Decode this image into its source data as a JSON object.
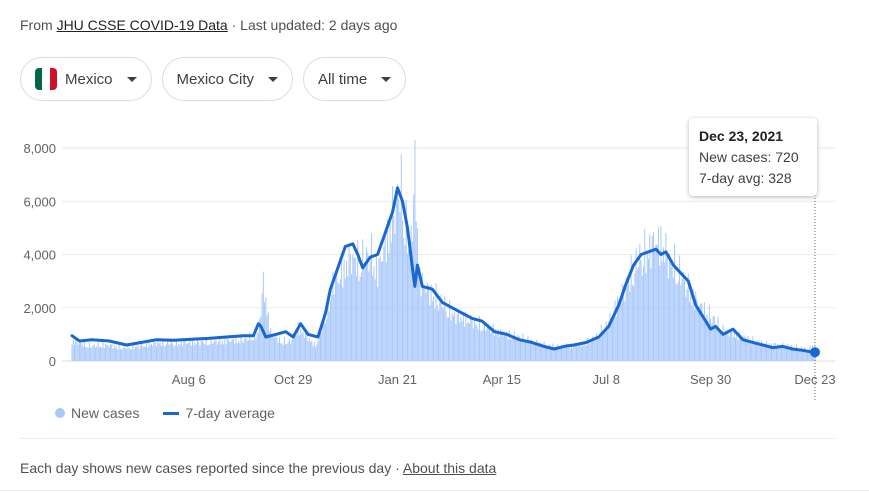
{
  "source": {
    "prefix": "From ",
    "link": "JHU CSSE COVID-19 Data",
    "updated": " · Last updated: 2 days ago"
  },
  "filters": {
    "country": "Mexico",
    "region": "Mexico City",
    "range": "All time",
    "flag_colors": [
      "#006847",
      "#ffffff",
      "#ce1126"
    ]
  },
  "tooltip": {
    "date": "Dec 23, 2021",
    "new_cases": "New cases: 720",
    "avg": "7-day avg: 328"
  },
  "legend": {
    "bars": "New cases",
    "line": "7-day average"
  },
  "footer": {
    "note": "Each day shows new cases reported since the previous day",
    "sep": " · ",
    "link": "About this data"
  },
  "colors": {
    "bars": "#a8c7fa",
    "line": "#1967d2",
    "grid": "#e8eaed"
  },
  "chart_data": {
    "type": "bar",
    "title": "",
    "xlabel": "",
    "ylabel": "",
    "ylim": [
      0,
      8000
    ],
    "yticks": [
      "0",
      "2,000",
      "4,000",
      "6,000",
      "8,000"
    ],
    "x_ticks": [
      "Aug 6",
      "Oct 29",
      "Jan 21",
      "Apr 15",
      "Jul 8",
      "Sep 30",
      "Dec 23"
    ],
    "x_tick_positions": [
      94,
      178,
      262,
      346,
      430,
      514,
      598
    ],
    "x_start": "2020-05-04",
    "x_end": "2021-12-23",
    "series": [
      {
        "name": "New cases",
        "type": "bar",
        "points": [
          [
            0,
            950
          ],
          [
            14,
            700
          ],
          [
            28,
            750
          ],
          [
            42,
            600
          ],
          [
            56,
            720
          ],
          [
            70,
            850
          ],
          [
            84,
            820
          ],
          [
            98,
            880
          ],
          [
            112,
            900
          ],
          [
            126,
            950
          ],
          [
            140,
            1000
          ],
          [
            150,
            1300
          ],
          [
            154,
            3600
          ],
          [
            160,
            1300
          ],
          [
            168,
            900
          ],
          [
            176,
            900
          ],
          [
            182,
            1500
          ],
          [
            188,
            1200
          ],
          [
            196,
            700
          ],
          [
            204,
            2000
          ],
          [
            210,
            3600
          ],
          [
            216,
            4000
          ],
          [
            224,
            4800
          ],
          [
            232,
            4600
          ],
          [
            240,
            5000
          ],
          [
            246,
            4200
          ],
          [
            252,
            5400
          ],
          [
            258,
            6800
          ],
          [
            262,
            7600
          ],
          [
            265,
            8000
          ],
          [
            268,
            6500
          ],
          [
            272,
            5000
          ],
          [
            276,
            8700
          ],
          [
            280,
            3800
          ],
          [
            288,
            3200
          ],
          [
            296,
            2800
          ],
          [
            308,
            2100
          ],
          [
            320,
            1900
          ],
          [
            332,
            1600
          ],
          [
            346,
            1300
          ],
          [
            360,
            1100
          ],
          [
            374,
            850
          ],
          [
            390,
            650
          ],
          [
            402,
            700
          ],
          [
            412,
            800
          ],
          [
            422,
            1100
          ],
          [
            432,
            1800
          ],
          [
            440,
            2800
          ],
          [
            448,
            3800
          ],
          [
            456,
            4700
          ],
          [
            464,
            5200
          ],
          [
            470,
            5600
          ],
          [
            476,
            5400
          ],
          [
            480,
            4700
          ],
          [
            486,
            4400
          ],
          [
            492,
            3800
          ],
          [
            500,
            3000
          ],
          [
            508,
            2400
          ],
          [
            516,
            2000
          ],
          [
            524,
            1400
          ],
          [
            532,
            1300
          ],
          [
            544,
            1000
          ],
          [
            556,
            800
          ],
          [
            568,
            750
          ],
          [
            580,
            650
          ],
          [
            592,
            550
          ],
          [
            598,
            720
          ]
        ]
      },
      {
        "name": "7-day average",
        "type": "line",
        "points": [
          [
            0,
            950
          ],
          [
            6,
            750
          ],
          [
            16,
            800
          ],
          [
            30,
            750
          ],
          [
            44,
            600
          ],
          [
            56,
            700
          ],
          [
            68,
            800
          ],
          [
            82,
            780
          ],
          [
            96,
            820
          ],
          [
            110,
            850
          ],
          [
            124,
            900
          ],
          [
            138,
            950
          ],
          [
            146,
            950
          ],
          [
            150,
            1400
          ],
          [
            152,
            1300
          ],
          [
            156,
            900
          ],
          [
            164,
            1000
          ],
          [
            172,
            1100
          ],
          [
            178,
            900
          ],
          [
            184,
            1400
          ],
          [
            190,
            1000
          ],
          [
            198,
            900
          ],
          [
            204,
            1800
          ],
          [
            208,
            2700
          ],
          [
            214,
            3500
          ],
          [
            220,
            4300
          ],
          [
            226,
            4400
          ],
          [
            230,
            4000
          ],
          [
            234,
            3500
          ],
          [
            240,
            3900
          ],
          [
            246,
            4000
          ],
          [
            252,
            4800
          ],
          [
            258,
            5600
          ],
          [
            262,
            6500
          ],
          [
            266,
            6000
          ],
          [
            270,
            5000
          ],
          [
            274,
            3500
          ],
          [
            276,
            2800
          ],
          [
            278,
            3600
          ],
          [
            282,
            2800
          ],
          [
            290,
            2700
          ],
          [
            298,
            2200
          ],
          [
            306,
            2000
          ],
          [
            314,
            1800
          ],
          [
            322,
            1600
          ],
          [
            330,
            1500
          ],
          [
            340,
            1100
          ],
          [
            350,
            1000
          ],
          [
            360,
            800
          ],
          [
            370,
            700
          ],
          [
            380,
            550
          ],
          [
            388,
            450
          ],
          [
            396,
            550
          ],
          [
            404,
            600
          ],
          [
            414,
            700
          ],
          [
            424,
            900
          ],
          [
            432,
            1300
          ],
          [
            440,
            2100
          ],
          [
            446,
            2900
          ],
          [
            452,
            3600
          ],
          [
            458,
            4000
          ],
          [
            464,
            4100
          ],
          [
            470,
            4200
          ],
          [
            474,
            4000
          ],
          [
            478,
            4100
          ],
          [
            484,
            3600
          ],
          [
            490,
            3300
          ],
          [
            496,
            3000
          ],
          [
            502,
            2100
          ],
          [
            506,
            1800
          ],
          [
            510,
            1500
          ],
          [
            514,
            1200
          ],
          [
            518,
            1300
          ],
          [
            524,
            1000
          ],
          [
            532,
            1200
          ],
          [
            540,
            800
          ],
          [
            548,
            700
          ],
          [
            556,
            600
          ],
          [
            564,
            500
          ],
          [
            572,
            550
          ],
          [
            580,
            450
          ],
          [
            588,
            400
          ],
          [
            594,
            350
          ],
          [
            598,
            328
          ]
        ]
      }
    ]
  }
}
